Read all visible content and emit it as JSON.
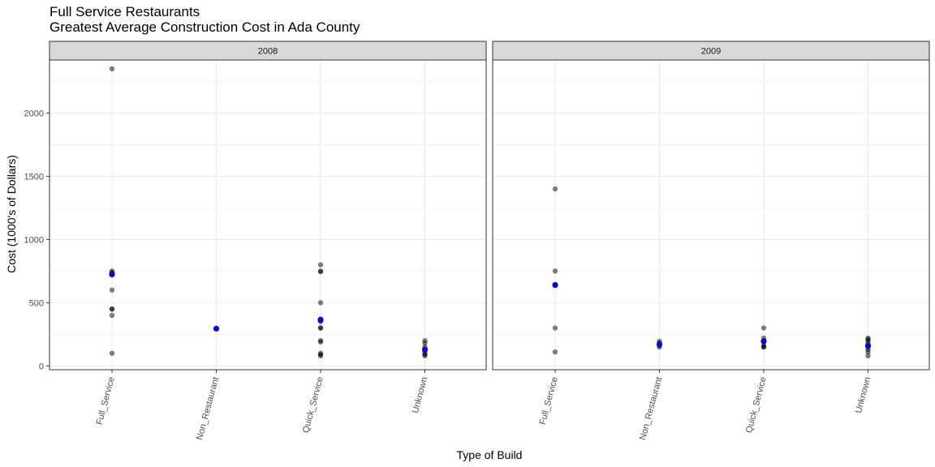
{
  "chart_data": {
    "type": "scatter",
    "title": "Full Service Restaurants",
    "subtitle": "Greatest Average Construction Cost in Ada County",
    "xlabel": "Type of Build",
    "ylabel": "Cost (1000's of Dollars)",
    "categories": [
      "Full_Service",
      "Non_Restaurant",
      "Quick_Service",
      "Unknown"
    ],
    "y_ticks": [
      0,
      500,
      1000,
      1500,
      2000
    ],
    "y_tick_labels": [
      "0",
      "500",
      "1000",
      "1500",
      "2000"
    ],
    "ylim": [
      -30,
      2420
    ],
    "grid": true,
    "colors": {
      "points": "#000000",
      "mean": "#0000ff",
      "strip": "#d9d9d9",
      "panel_border": "#333333",
      "grid": "#ebebeb"
    },
    "facets": [
      {
        "label": "2008",
        "points": {
          "Full_Service": [
            2350,
            750,
            740,
            730,
            720,
            600,
            450,
            450,
            400,
            100
          ],
          "Non_Restaurant": [
            295
          ],
          "Quick_Service": [
            800,
            750,
            745,
            500,
            370,
            365,
            360,
            350,
            300,
            300,
            200,
            190,
            100,
            90,
            80
          ],
          "Unknown": [
            200,
            180,
            150,
            130,
            120,
            100,
            90,
            80
          ]
        },
        "means": {
          "Full_Service": 725,
          "Non_Restaurant": 295,
          "Quick_Service": 365,
          "Unknown": 130
        }
      },
      {
        "label": "2009",
        "points": {
          "Full_Service": [
            1400,
            750,
            640,
            300,
            110
          ],
          "Non_Restaurant": [
            195,
            180,
            160,
            150
          ],
          "Quick_Service": [
            300,
            220,
            200,
            190,
            160,
            150,
            150
          ],
          "Unknown": [
            220,
            210,
            200,
            180,
            150,
            130,
            110,
            80
          ]
        },
        "means": {
          "Full_Service": 640,
          "Non_Restaurant": 172,
          "Quick_Service": 195,
          "Unknown": 160
        }
      }
    ]
  }
}
